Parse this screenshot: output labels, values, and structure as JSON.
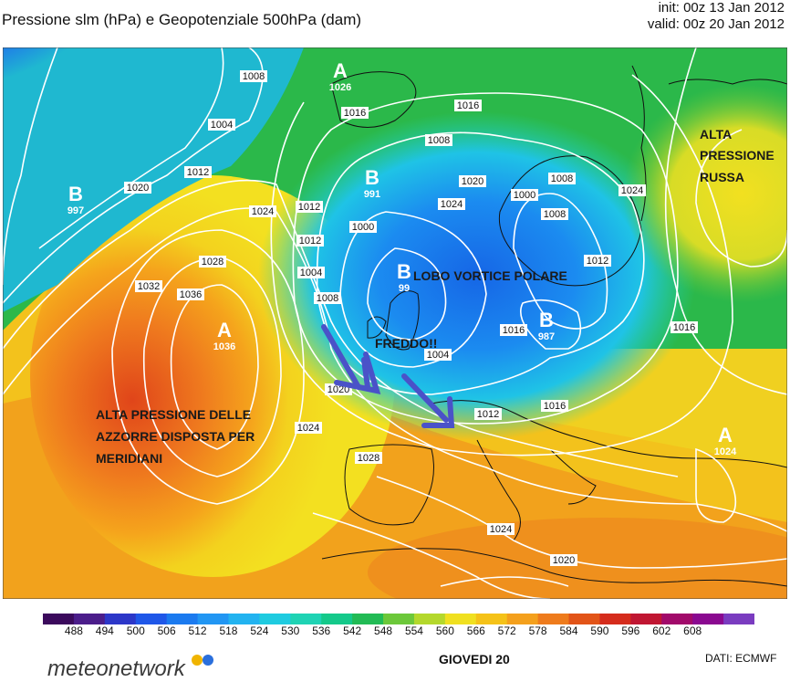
{
  "header": {
    "title": "Pressione slm (hPa) e Geopotenziale 500hPa (dam)",
    "init": "init: 00z 13 Jan 2012",
    "valid": "valid: 00z 20 Jan 2012"
  },
  "map": {
    "isobar_labels": [
      "1008",
      "1004",
      "1016",
      "1012",
      "1020",
      "1024",
      "1028",
      "1032",
      "1036",
      "1012",
      "1008",
      "1000",
      "1004",
      "1012",
      "1008",
      "1016",
      "1020",
      "1024",
      "1004",
      "1000",
      "1008",
      "1012",
      "1016",
      "1016",
      "1020",
      "1024",
      "1028",
      "1024",
      "1020",
      "1012",
      "1016",
      "1024",
      "1008"
    ],
    "pressure_centers": [
      {
        "letter": "A",
        "value": "1026"
      },
      {
        "letter": "B",
        "value": "997"
      },
      {
        "letter": "B",
        "value": "991"
      },
      {
        "letter": "B",
        "value": "99"
      },
      {
        "letter": "A",
        "value": "1036"
      },
      {
        "letter": "B",
        "value": "987"
      },
      {
        "letter": "A",
        "value": "1024"
      }
    ],
    "annotations": {
      "alta_russa": [
        "ALTA",
        "PRESSIONE",
        "RUSSA"
      ],
      "lobo": "LOBO VORTICE POLARE",
      "freddo": "FREDDO!!",
      "azzorre": [
        "ALTA PRESSIONE DELLE",
        "AZZORRE DISPOSTA PER",
        "MERIDIANI"
      ]
    },
    "colors": {
      "arrow": "#4a52c8",
      "annotation_text": "#1a1a1a"
    }
  },
  "colorbar": {
    "labels": [
      "488",
      "494",
      "500",
      "506",
      "512",
      "518",
      "524",
      "530",
      "536",
      "542",
      "548",
      "554",
      "560",
      "566",
      "572",
      "578",
      "584",
      "590",
      "596",
      "602",
      "608"
    ],
    "colors": [
      "#3b0a5c",
      "#4b1d8a",
      "#2c37c8",
      "#1f57e8",
      "#1b7aef",
      "#2196f3",
      "#22b3f0",
      "#1fcbe0",
      "#1fd3b4",
      "#14c98a",
      "#22bb55",
      "#6cc83a",
      "#b4d82c",
      "#f0e020",
      "#f5c218",
      "#f4a01c",
      "#ee7b1c",
      "#e25418",
      "#d52c1c",
      "#c01632",
      "#a10a6a",
      "#8a0990",
      "#7a3cc0"
    ]
  },
  "footer": {
    "logo": "meteonetwork",
    "day": "GIOVEDI 20",
    "dati": "DATI:  ECMWF"
  }
}
